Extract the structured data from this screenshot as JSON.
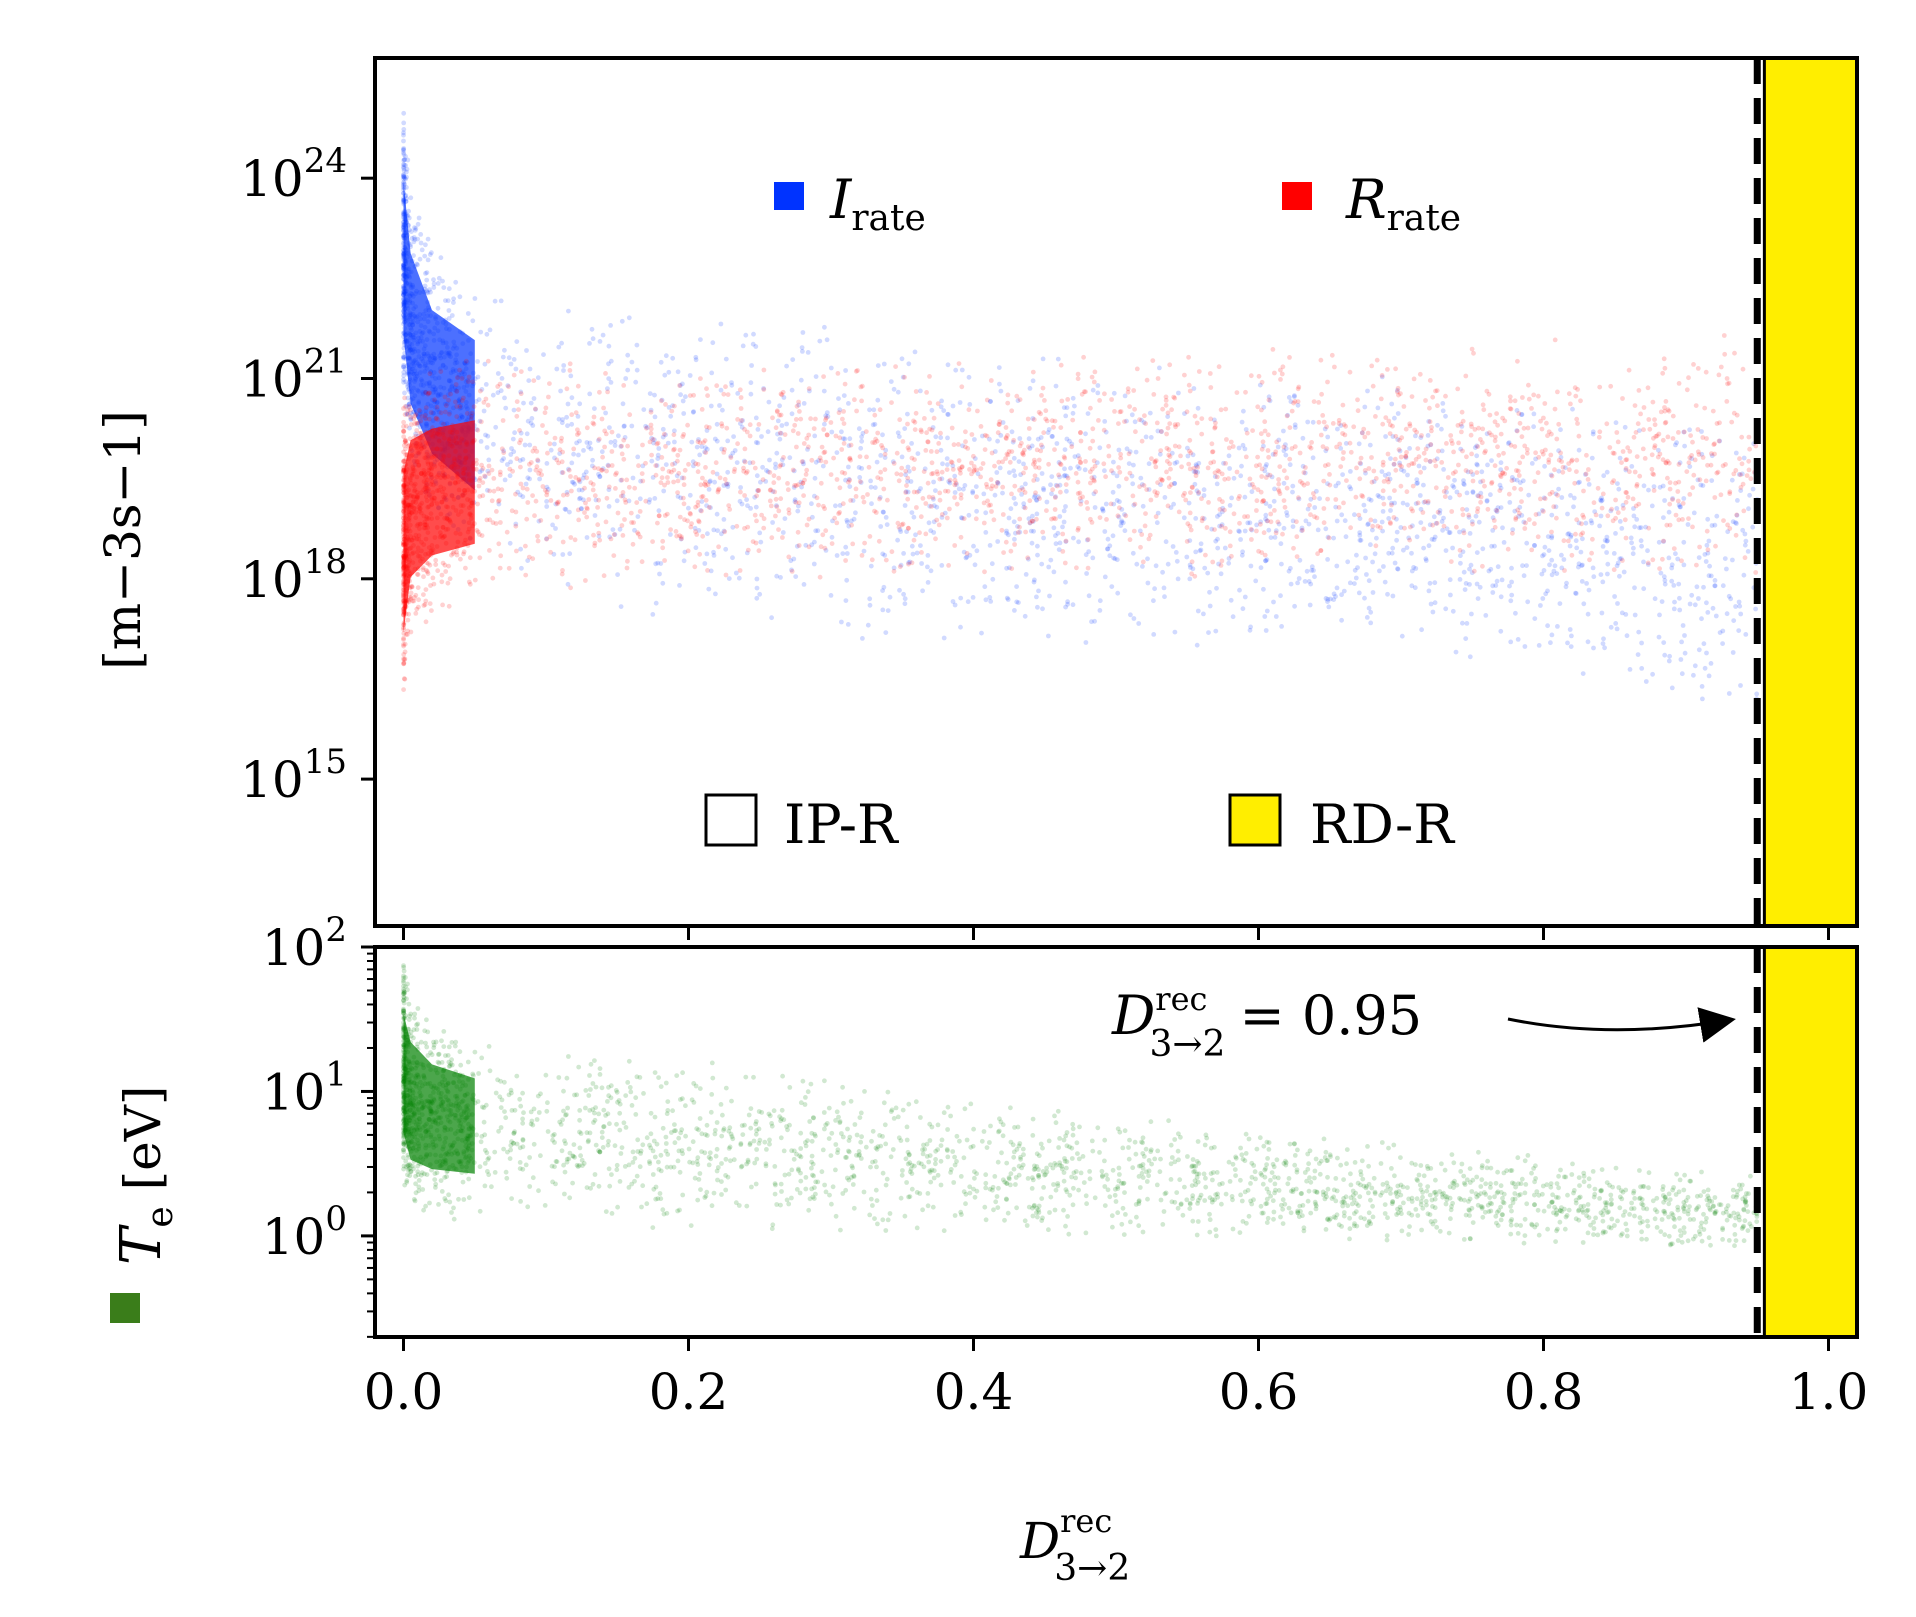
{
  "chart_data": [
    {
      "type": "scatter",
      "panel": "top",
      "xlim": [
        -0.02,
        1.02
      ],
      "yscale": "log",
      "ylim_log10": [
        12.8,
        25.8
      ],
      "ylabel": "[m−3s−1]",
      "yticks": [
        {
          "value": 1e+24,
          "base": "10",
          "exp": "24"
        },
        {
          "value": 1e+21,
          "base": "10",
          "exp": "21"
        },
        {
          "value": 1e+18,
          "base": "10",
          "exp": "18"
        },
        {
          "value": 1000000000000000.0,
          "base": "10",
          "exp": "15"
        }
      ],
      "series": [
        {
          "name_main": "I",
          "name_sub": "rate",
          "color": "#0033ff",
          "envelope_x": [
            0.0,
            0.005,
            0.02,
            0.05,
            0.1,
            0.2,
            0.3,
            0.4,
            0.5,
            0.6,
            0.7,
            0.8,
            0.9,
            0.95
          ],
          "envelope_upper_log10": [
            25.1,
            24.0,
            23.1,
            22.7,
            22.4,
            22.1,
            21.9,
            21.7,
            21.5,
            21.3,
            21.1,
            20.9,
            20.6,
            20.5
          ],
          "envelope_lower_log10": [
            20.5,
            19.5,
            18.8,
            18.2,
            17.7,
            17.3,
            17.1,
            16.9,
            16.8,
            16.7,
            16.6,
            16.4,
            16.0,
            15.5
          ]
        },
        {
          "name_main": "R",
          "name_sub": "rate",
          "color": "#ff0000",
          "envelope_x": [
            0.0,
            0.005,
            0.02,
            0.05,
            0.1,
            0.2,
            0.3,
            0.4,
            0.5,
            0.6,
            0.7,
            0.8,
            0.9,
            0.95
          ],
          "envelope_upper_log10": [
            20.8,
            21.1,
            21.2,
            21.3,
            21.3,
            21.3,
            21.4,
            21.4,
            21.5,
            21.5,
            21.6,
            21.6,
            21.7,
            21.7
          ],
          "envelope_lower_log10": [
            16.0,
            17.0,
            17.4,
            17.6,
            17.7,
            17.8,
            17.9,
            18.0,
            18.0,
            18.0,
            18.0,
            17.9,
            17.8,
            17.8
          ]
        }
      ],
      "regions": [
        {
          "label": "IP-R",
          "x_from": -0.02,
          "x_to": 0.95,
          "color": "#ffffff"
        },
        {
          "label": "RD-R",
          "x_from": 0.955,
          "x_to": 1.02,
          "color": "#ffee00"
        }
      ],
      "threshold_x": 0.95
    },
    {
      "type": "scatter",
      "panel": "bottom",
      "xlim": [
        -0.02,
        1.02
      ],
      "xlabel_main": "D",
      "xlabel_sup": "rec",
      "xlabel_sub": "3→2",
      "xticks": [
        "0.0",
        "0.2",
        "0.4",
        "0.6",
        "0.8",
        "1.0"
      ],
      "yscale": "log",
      "ylim_log10": [
        -0.7,
        2.0
      ],
      "ylabel_main": "T",
      "ylabel_sub": "e",
      "ylabel_unit": "[eV]",
      "yticks": [
        {
          "value": 100,
          "base": "10",
          "exp": "2"
        },
        {
          "value": 10,
          "base": "10",
          "exp": "1"
        },
        {
          "value": 1,
          "base": "10",
          "exp": "0"
        }
      ],
      "series": [
        {
          "name_main": "T",
          "name_sub": "e",
          "color": "#008000",
          "envelope_x": [
            0.0,
            0.005,
            0.02,
            0.05,
            0.1,
            0.2,
            0.3,
            0.4,
            0.5,
            0.6,
            0.7,
            0.8,
            0.9,
            0.95
          ],
          "envelope_upper_log10": [
            1.95,
            1.75,
            1.55,
            1.42,
            1.35,
            1.25,
            1.1,
            0.98,
            0.88,
            0.75,
            0.65,
            0.55,
            0.5,
            0.45
          ],
          "envelope_lower_log10": [
            0.3,
            0.12,
            0.1,
            0.1,
            0.07,
            0.03,
            0.0,
            0.0,
            -0.03,
            -0.05,
            -0.06,
            -0.08,
            -0.1,
            -0.1
          ]
        }
      ],
      "annotation": {
        "main": "D",
        "sup": "rec",
        "sub": "3→2",
        "rest": "= 0.95",
        "x": 0.95,
        "y": 30
      }
    }
  ]
}
